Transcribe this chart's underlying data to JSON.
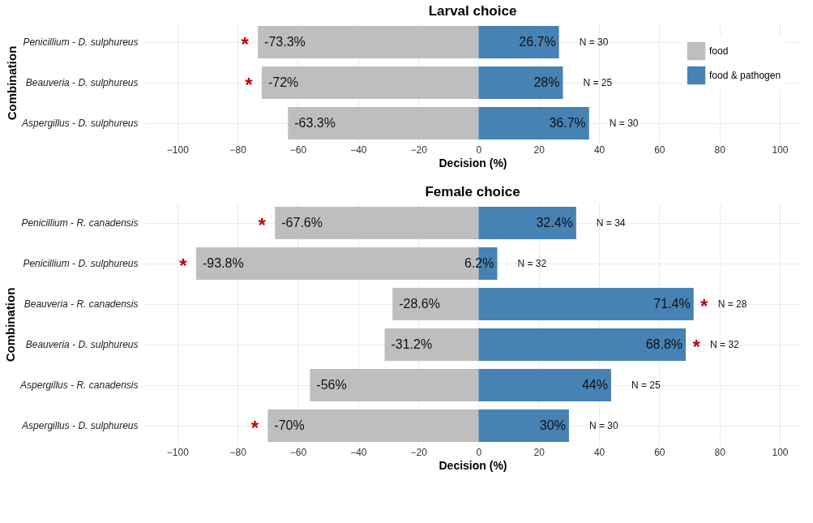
{
  "chart_data": [
    {
      "type": "bar",
      "orientation": "horizontal",
      "stacked": true,
      "title": "Larval choice",
      "xlabel": "Decision (%)",
      "ylabel": "Combination",
      "categories": [
        "Penicillium - D. sulphureus",
        "Beauveria - D. sulphureus",
        "Aspergillus - D. sulphureus"
      ],
      "series": [
        {
          "name": "food",
          "color": "#bebebe",
          "values": [
            -73.3,
            -72,
            -63.3
          ],
          "value_labels": [
            "-73.3%",
            "-72%",
            "-63.3%"
          ]
        },
        {
          "name": "food & pathogen",
          "color": "#4682b4",
          "values": [
            26.7,
            28,
            36.7
          ],
          "value_labels": [
            "26.7%",
            "28%",
            "36.7%"
          ]
        }
      ],
      "xlim": [
        -111,
        107
      ],
      "xticks": [
        -100,
        -80,
        -60,
        -40,
        -20,
        0,
        20,
        40,
        60,
        80,
        100
      ],
      "grid": true,
      "legend": "top right",
      "annotations": [
        {
          "text": "*",
          "x": -73.3,
          "y": "Penicillium - D. sulphureus"
        },
        {
          "text": "*",
          "x": -72,
          "y": "Beauveria - D. sulphureus"
        },
        {
          "text": "N = 30",
          "x": 26.7,
          "y": "Penicillium - D. sulphureus"
        },
        {
          "text": "N = 25",
          "x": 28,
          "y": "Beauveria - D. sulphureus"
        },
        {
          "text": "N = 30",
          "x": 36.7,
          "y": "Aspergillus - D. sulphureus"
        }
      ]
    },
    {
      "type": "bar",
      "orientation": "horizontal",
      "stacked": true,
      "title": "Female choice",
      "xlabel": "Decision (%)",
      "ylabel": "Combination",
      "categories": [
        "Penicillium - R. canadensis",
        "Penicillium - D. sulphureus",
        "Beauveria - R. canadensis",
        "Beauveria - D. sulphureus",
        "Aspergillus - R. canadensis",
        "Aspergillus - D. sulphureus"
      ],
      "series": [
        {
          "color": "#bebebe",
          "values": [
            -67.6,
            -93.8,
            -28.6,
            -31.2,
            -56,
            -70
          ],
          "value_labels": [
            "-67.6%",
            "-93.8%",
            "-28.6%",
            "-31.2%",
            "-56%",
            "-70%"
          ]
        },
        {
          "color": "#4682b4",
          "values": [
            32.4,
            6.2,
            71.4,
            68.8,
            44,
            30
          ],
          "value_labels": [
            "32.4%",
            "6.2%",
            "71.4%",
            "68.8%",
            "44%",
            "30%"
          ]
        }
      ],
      "xlim": [
        -111,
        107
      ],
      "xticks": [
        -100,
        -80,
        -60,
        -40,
        -20,
        0,
        20,
        40,
        60,
        80,
        100
      ],
      "grid": true,
      "annotations": [
        {
          "text": "*",
          "x": -67.6,
          "y": "Penicillium - R. canadensis"
        },
        {
          "text": "*",
          "x": -93.8,
          "y": "Penicillium - D. sulphureus"
        },
        {
          "text": "*",
          "x": 71.4,
          "y": "Beauveria - R. canadensis"
        },
        {
          "text": "*",
          "x": 68.8,
          "y": "Beauveria - D. sulphureus"
        },
        {
          "text": "*",
          "x": -70,
          "y": "Aspergillus - D. sulphureus"
        },
        {
          "text": "N = 34",
          "x": 32.4,
          "y": "Penicillium - R. canadensis"
        },
        {
          "text": "N = 32",
          "x": 6.2,
          "y": "Penicillium - D. sulphureus"
        },
        {
          "text": "N = 28",
          "x": 71.4,
          "y": "Beauveria - R. canadensis"
        },
        {
          "text": "N = 32",
          "x": 68.8,
          "y": "Beauveria - D. sulphureus"
        },
        {
          "text": "N = 25",
          "x": 44,
          "y": "Aspergillus - R. canadensis"
        },
        {
          "text": "N = 30",
          "x": 30,
          "y": "Aspergillus - D. sulphureus"
        }
      ]
    }
  ]
}
